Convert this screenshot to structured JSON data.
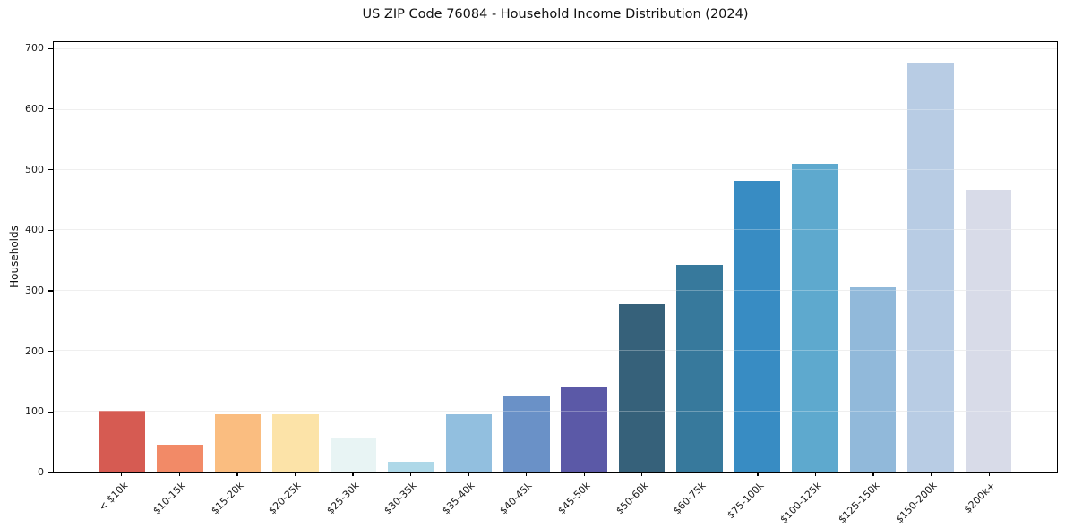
{
  "chart_data": {
    "type": "bar",
    "title": "US ZIP Code 76084 - Household Income Distribution (2024)",
    "xlabel": "",
    "ylabel": "Households",
    "categories": [
      "< $10k",
      "$10-15k",
      "$15-20k",
      "$20-25k",
      "$25-30k",
      "$30-35k",
      "$35-40k",
      "$40-45k",
      "$45-50k",
      "$50-60k",
      "$60-75k",
      "$75-100k",
      "$100-125k",
      "$125-150k",
      "$150-200k",
      "$200k+"
    ],
    "values": [
      101,
      45,
      95,
      95,
      56,
      16,
      95,
      126,
      140,
      278,
      343,
      482,
      510,
      306,
      678,
      468
    ],
    "bar_colors": [
      "#d65b52",
      "#f28a67",
      "#fabd80",
      "#fce3a8",
      "#e8f4f4",
      "#aed8e8",
      "#92bfdf",
      "#6a91c7",
      "#5b59a7",
      "#36617a",
      "#37799c",
      "#388cc3",
      "#5ea9ce",
      "#91b9da",
      "#b8cce4",
      "#d8dbe8"
    ],
    "ylim": [
      0,
      712
    ],
    "y_ticks": [
      0,
      100,
      200,
      300,
      400,
      500,
      600,
      700
    ],
    "xlim": [
      -1.19,
      16.19
    ],
    "bar_width_units": 0.8,
    "x_tick_rotation_deg": 45,
    "grid": "horizontal",
    "legend": "none",
    "colors": {
      "background": "#ffffff",
      "grid": "#e9e9e9",
      "grid_over_bars": "rgba(255,255,255,0.28)",
      "spine": "#000000",
      "text": "#111111",
      "tick_text": "#1a1a1a"
    }
  }
}
